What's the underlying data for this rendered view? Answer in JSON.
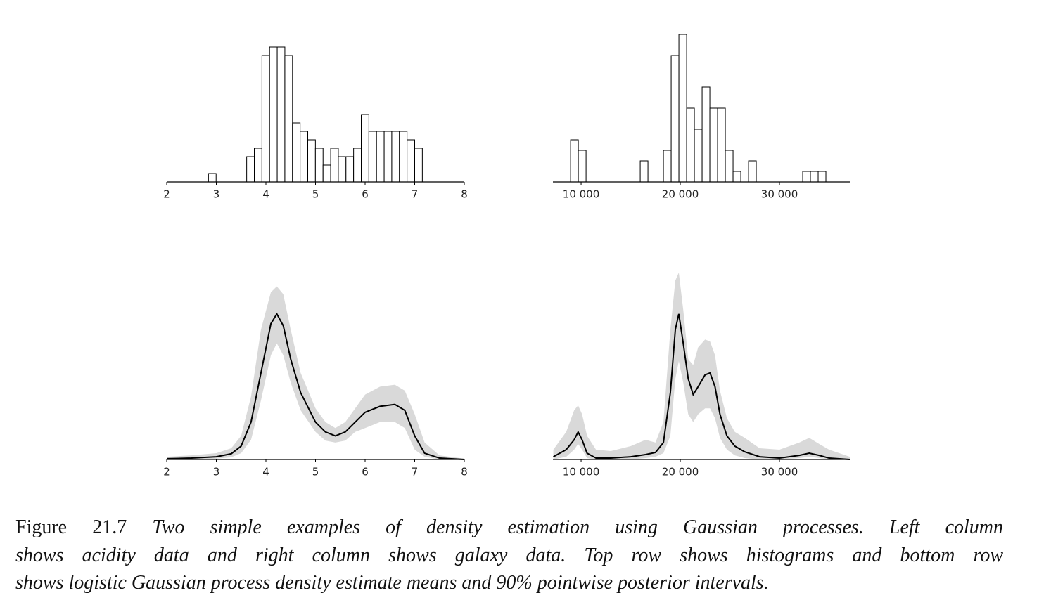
{
  "chart_data": [
    {
      "type": "histogram",
      "xlim": [
        2,
        8
      ],
      "ylim": [
        0,
        18
      ],
      "color": "#000000",
      "xticks": [
        2,
        3,
        4,
        5,
        6,
        7,
        8
      ],
      "bins": [
        2.842,
        2.996,
        3.15,
        3.304,
        3.458,
        3.612,
        3.766,
        3.92,
        4.074,
        4.228,
        4.382,
        4.536,
        4.69,
        4.844,
        4.998,
        5.152,
        5.306,
        5.46,
        5.614,
        5.768,
        5.922,
        6.076,
        6.23,
        6.384,
        6.538,
        6.692,
        6.846,
        7.0,
        7.154
      ],
      "counts": [
        1,
        0,
        0,
        0,
        0,
        3,
        4,
        15,
        16,
        16,
        15,
        7,
        6,
        5,
        4,
        2,
        4,
        3,
        3,
        4,
        8,
        6,
        6,
        6,
        6,
        6,
        5,
        4
      ]
    },
    {
      "type": "histogram",
      "xlim": [
        7160,
        37090
      ],
      "ylim": [
        0,
        15
      ],
      "color": "#000000",
      "xticks": [
        {
          "value": 10000,
          "label": "10 000"
        },
        {
          "value": 20000,
          "label": "20 000"
        },
        {
          "value": 30000,
          "label": "30 000"
        }
      ],
      "bins": [
        8940,
        9720,
        10500,
        11280,
        12060,
        12840,
        13620,
        14400,
        15180,
        15960,
        16740,
        17520,
        18300,
        19080,
        19860,
        20640,
        21420,
        22200,
        22980,
        23760,
        24540,
        25320,
        26100,
        26880,
        27660,
        28440,
        29220,
        30000,
        30780,
        31560,
        32340,
        33120,
        33900,
        34680
      ],
      "counts": [
        4,
        3,
        0,
        0,
        0,
        0,
        0,
        0,
        0,
        2,
        0,
        0,
        3,
        12,
        14,
        7,
        5,
        9,
        7,
        7,
        3,
        1,
        0,
        2,
        0,
        0,
        0,
        0,
        0,
        0,
        1,
        1,
        1
      ]
    },
    {
      "type": "line",
      "xlim": [
        2,
        8
      ],
      "ylim": [
        0,
        1
      ],
      "xticks": [
        2,
        3,
        4,
        5,
        6,
        7,
        8
      ],
      "x": [
        2,
        2.5,
        3,
        3.3,
        3.5,
        3.7,
        3.9,
        4.1,
        4.22,
        4.35,
        4.5,
        4.7,
        5.0,
        5.2,
        5.4,
        5.6,
        5.8,
        6.0,
        6.3,
        6.6,
        6.8,
        7.0,
        7.2,
        7.5,
        8
      ],
      "series": [
        {
          "color": "#000000",
          "values": [
            0.004,
            0.007,
            0.014,
            0.029,
            0.068,
            0.19,
            0.44,
            0.69,
            0.74,
            0.68,
            0.51,
            0.34,
            0.19,
            0.14,
            0.12,
            0.14,
            0.19,
            0.24,
            0.27,
            0.28,
            0.25,
            0.12,
            0.032,
            0.007,
            0
          ]
        }
      ],
      "band": {
        "color": "#d9d9d9",
        "upper": [
          0.014,
          0.021,
          0.032,
          0.057,
          0.12,
          0.32,
          0.66,
          0.85,
          0.88,
          0.84,
          0.66,
          0.44,
          0.26,
          0.19,
          0.16,
          0.19,
          0.26,
          0.33,
          0.37,
          0.38,
          0.35,
          0.23,
          0.086,
          0.021,
          0.004
        ],
        "lower": [
          0,
          0,
          0.004,
          0.011,
          0.032,
          0.1,
          0.3,
          0.53,
          0.59,
          0.53,
          0.39,
          0.25,
          0.14,
          0.096,
          0.086,
          0.096,
          0.14,
          0.16,
          0.19,
          0.19,
          0.16,
          0.05,
          0.014,
          0,
          0
        ]
      }
    },
    {
      "type": "line",
      "xlim": [
        7160,
        37090
      ],
      "ylim": [
        0,
        1
      ],
      "xticks": [
        {
          "value": 10000,
          "label": "10 000"
        },
        {
          "value": 20000,
          "label": "20 000"
        },
        {
          "value": 30000,
          "label": "30 000"
        }
      ],
      "x": [
        7200,
        8500,
        9300,
        9700,
        10100,
        10600,
        11500,
        13000,
        15000,
        16500,
        17500,
        18300,
        19000,
        19500,
        19850,
        20300,
        20800,
        21300,
        21800,
        22500,
        23000,
        23500,
        24000,
        24700,
        25500,
        26500,
        28000,
        30000,
        32000,
        33000,
        34000,
        35000,
        37090
      ],
      "series": [
        {
          "color": "#000000",
          "values": [
            0.014,
            0.05,
            0.1,
            0.14,
            0.1,
            0.032,
            0.007,
            0.007,
            0.014,
            0.025,
            0.036,
            0.086,
            0.34,
            0.66,
            0.74,
            0.59,
            0.41,
            0.33,
            0.37,
            0.43,
            0.44,
            0.37,
            0.23,
            0.12,
            0.068,
            0.039,
            0.014,
            0.007,
            0.021,
            0.032,
            0.021,
            0.007,
            0
          ]
        }
      ],
      "band": {
        "color": "#d9d9d9",
        "upper": [
          0.05,
          0.14,
          0.25,
          0.275,
          0.23,
          0.12,
          0.05,
          0.043,
          0.068,
          0.1,
          0.086,
          0.19,
          0.66,
          0.91,
          0.95,
          0.76,
          0.51,
          0.48,
          0.57,
          0.61,
          0.6,
          0.53,
          0.35,
          0.21,
          0.14,
          0.11,
          0.057,
          0.05,
          0.086,
          0.11,
          0.079,
          0.05,
          0.014
        ],
        "lower": [
          0,
          0.014,
          0.05,
          0.079,
          0.05,
          0.007,
          0,
          0,
          0,
          0.007,
          0.014,
          0.032,
          0.12,
          0.41,
          0.5,
          0.39,
          0.23,
          0.19,
          0.23,
          0.26,
          0.26,
          0.21,
          0.11,
          0.05,
          0.021,
          0.007,
          0,
          0,
          0.007,
          0.014,
          0.007,
          0,
          0
        ]
      }
    }
  ],
  "caption": {
    "label": "Figure 21.7",
    "lines": [
      "Two simple examples of density estimation using Gaussian processes.  Left column",
      "shows acidity data and right column shows galaxy data. Top row shows histograms and bottom row",
      "shows logistic Gaussian process density estimate means and 90% pointwise posterior intervals."
    ]
  }
}
